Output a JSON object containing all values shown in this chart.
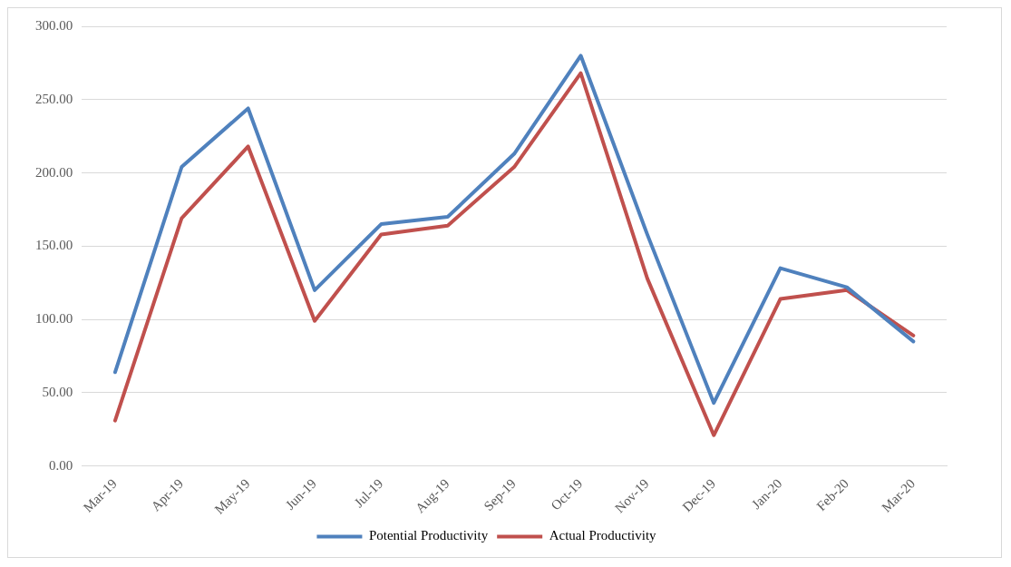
{
  "chart_data": {
    "type": "line",
    "categories": [
      "Mar-19",
      "Apr-19",
      "May-19",
      "Jun-19",
      "Jul-19",
      "Aug-19",
      "Sep-19",
      "Oct-19",
      "Nov-19",
      "Dec-19",
      "Jan-20",
      "Feb-20",
      "Mar-20"
    ],
    "series": [
      {
        "name": "Potential Productivity",
        "color": "#4f81bd",
        "values": [
          64,
          204,
          244,
          120,
          165,
          170,
          213,
          280,
          158,
          43,
          135,
          122,
          85
        ]
      },
      {
        "name": "Actual Productivity",
        "color": "#c0504d",
        "values": [
          31,
          169,
          218,
          99,
          158,
          164,
          204,
          268,
          128,
          21,
          114,
          120,
          89
        ]
      }
    ],
    "ylim": [
      0,
      300
    ],
    "yticks": [
      {
        "value": 0,
        "label": "0.00"
      },
      {
        "value": 50,
        "label": "50.00"
      },
      {
        "value": 100,
        "label": "100.00"
      },
      {
        "value": 150,
        "label": "150.00"
      },
      {
        "value": 200,
        "label": "200.00"
      },
      {
        "value": 250,
        "label": "250.00"
      },
      {
        "value": 300,
        "label": "300.00"
      }
    ],
    "grid": "y",
    "legend": "bottom",
    "marker": "none",
    "line_style": "solid"
  }
}
